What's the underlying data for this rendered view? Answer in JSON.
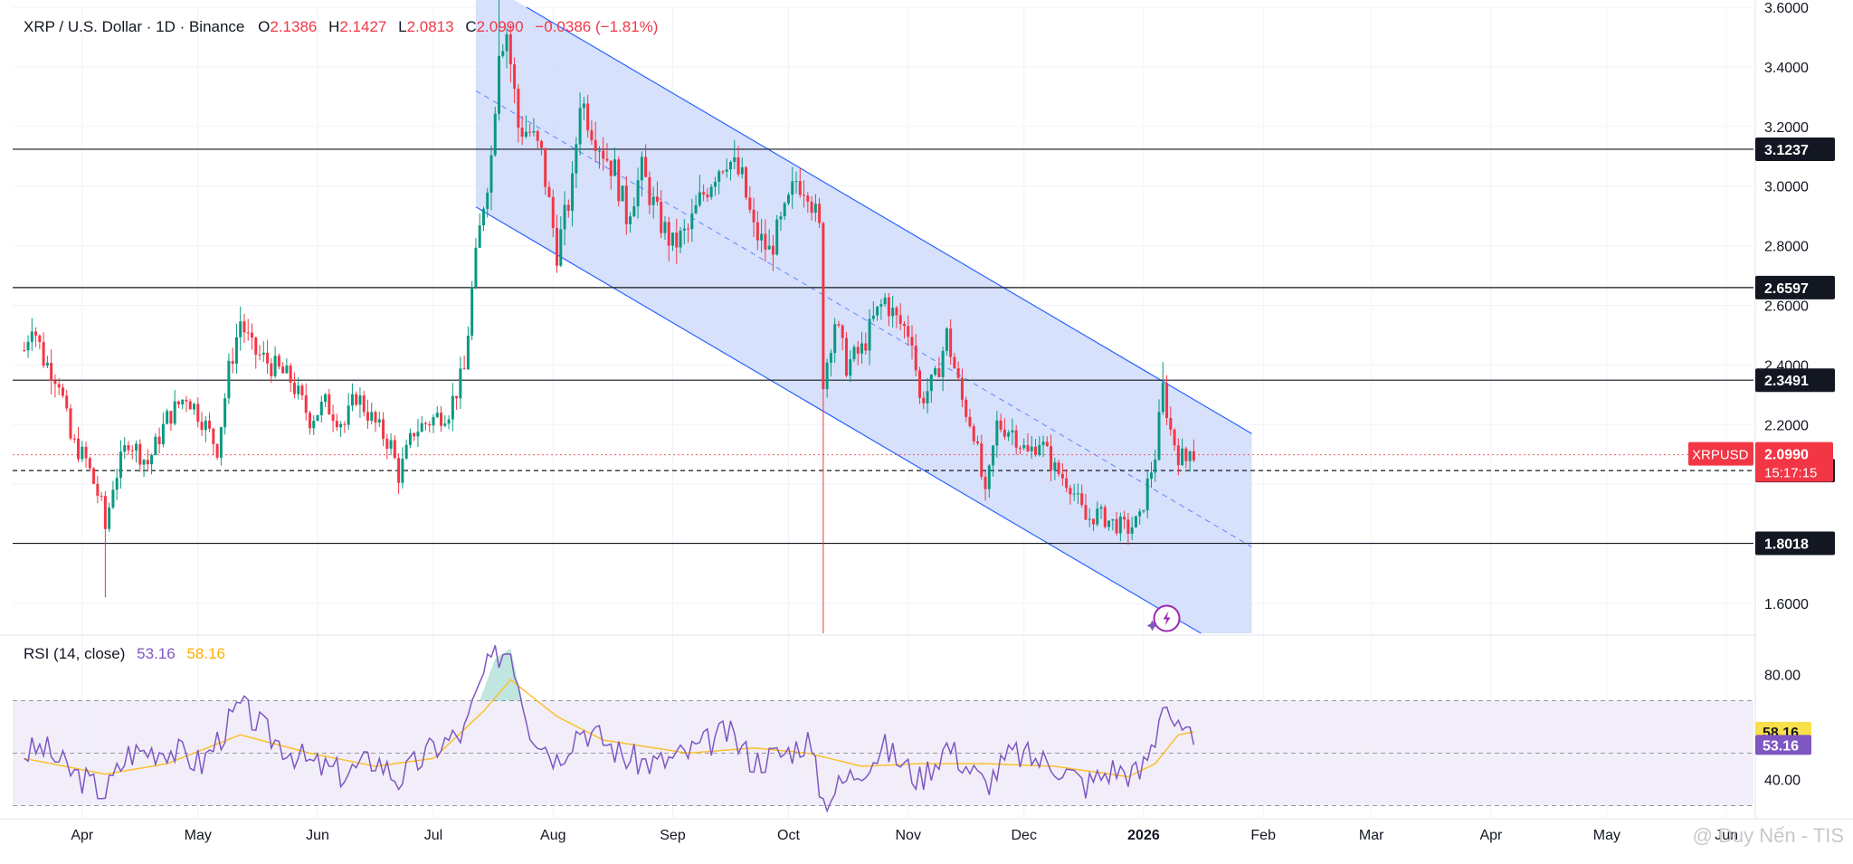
{
  "symbol_line": {
    "title": "XRP / U.S. Dollar · 1D · Binance",
    "o_label": "O",
    "o": "2.1386",
    "h_label": "H",
    "h": "2.1427",
    "l_label": "L",
    "l": "2.0813",
    "c_label": "C",
    "c": "2.0990",
    "change": "−0.0386 (−1.81%)"
  },
  "rsi_legend": {
    "title": "RSI (14, close)",
    "rsi": "53.16",
    "ma": "58.16"
  },
  "watermark": "@ Duy Nến - TIS",
  "colors": {
    "up": "#089981",
    "down": "#f23645",
    "channel_fill": "#d0dcfc",
    "channel_line": "#2962ff",
    "rsi": "#7e57c2",
    "rsi_ma": "#fbc02d",
    "rsi_band": "#ede7f6",
    "level": "#131722",
    "price_tag": "#f23645"
  },
  "chart_data": [
    {
      "type": "candlestick",
      "title": "XRP / U.S. Dollar · 1D · Binance",
      "ylim": [
        1.5,
        3.6
      ],
      "y_ticks": [
        1.6,
        1.8,
        2.0,
        2.2,
        2.4,
        2.6,
        2.8,
        3.0,
        3.2,
        3.4,
        3.6
      ],
      "y_tick_labels": [
        "1.6000",
        "2.2000",
        "2.4000",
        "2.6000",
        "2.8000",
        "3.0000",
        "3.2000",
        "3.4000",
        "3.6000"
      ],
      "y_tick_values": [
        1.6,
        2.2,
        2.4,
        2.6,
        2.8,
        3.0,
        3.2,
        3.4,
        3.6
      ],
      "x_labels": [
        "Apr",
        "May",
        "Jun",
        "Jul",
        "Aug",
        "Sep",
        "Oct",
        "Nov",
        "Dec",
        "2026",
        "Feb",
        "Mar",
        "Apr",
        "May",
        "Jun"
      ],
      "x_label_dates": [
        "2025-04-01",
        "2025-05-01",
        "2025-06-01",
        "2025-07-01",
        "2025-08-01",
        "2025-09-01",
        "2025-10-01",
        "2025-11-01",
        "2025-12-01",
        "2026-01-01",
        "2026-02-01",
        "2026-03-01",
        "2026-04-01",
        "2026-05-01",
        "2026-06-01"
      ],
      "first_date": "2025-03-17",
      "last_date": "2026-01-14",
      "close_path": [
        [
          "2025-03-17",
          2.45
        ],
        [
          "2025-03-19",
          2.55
        ],
        [
          "2025-03-22",
          2.42
        ],
        [
          "2025-03-26",
          2.35
        ],
        [
          "2025-03-29",
          2.15
        ],
        [
          "2025-04-02",
          2.08
        ],
        [
          "2025-04-06",
          1.93
        ],
        [
          "2025-04-07",
          1.85
        ],
        [
          "2025-04-09",
          2.0
        ],
        [
          "2025-04-13",
          2.15
        ],
        [
          "2025-04-18",
          2.07
        ],
        [
          "2025-04-23",
          2.22
        ],
        [
          "2025-04-28",
          2.3
        ],
        [
          "2025-05-02",
          2.22
        ],
        [
          "2025-05-06",
          2.12
        ],
        [
          "2025-05-09",
          2.38
        ],
        [
          "2025-05-12",
          2.55
        ],
        [
          "2025-05-15",
          2.45
        ],
        [
          "2025-05-20",
          2.4
        ],
        [
          "2025-05-25",
          2.35
        ],
        [
          "2025-05-30",
          2.22
        ],
        [
          "2025-06-03",
          2.27
        ],
        [
          "2025-06-08",
          2.2
        ],
        [
          "2025-06-11",
          2.3
        ],
        [
          "2025-06-16",
          2.2
        ],
        [
          "2025-06-20",
          2.13
        ],
        [
          "2025-06-22",
          2.03
        ],
        [
          "2025-06-26",
          2.18
        ],
        [
          "2025-07-01",
          2.22
        ],
        [
          "2025-07-05",
          2.25
        ],
        [
          "2025-07-09",
          2.38
        ],
        [
          "2025-07-11",
          2.65
        ],
        [
          "2025-07-14",
          2.95
        ],
        [
          "2025-07-16",
          3.1
        ],
        [
          "2025-07-18",
          3.48
        ],
        [
          "2025-07-20",
          3.52
        ],
        [
          "2025-07-23",
          3.2
        ],
        [
          "2025-07-26",
          3.18
        ],
        [
          "2025-07-29",
          3.1
        ],
        [
          "2025-08-02",
          2.78
        ],
        [
          "2025-08-06",
          3.0
        ],
        [
          "2025-08-08",
          3.3
        ],
        [
          "2025-08-11",
          3.2
        ],
        [
          "2025-08-14",
          3.12
        ],
        [
          "2025-08-17",
          3.05
        ],
        [
          "2025-08-20",
          2.9
        ],
        [
          "2025-08-24",
          3.05
        ],
        [
          "2025-08-28",
          2.9
        ],
        [
          "2025-09-01",
          2.8
        ],
        [
          "2025-09-05",
          2.85
        ],
        [
          "2025-09-08",
          2.95
        ],
        [
          "2025-09-12",
          3.05
        ],
        [
          "2025-09-15",
          3.1
        ],
        [
          "2025-09-19",
          3.02
        ],
        [
          "2025-09-22",
          2.85
        ],
        [
          "2025-09-26",
          2.78
        ],
        [
          "2025-09-30",
          2.9
        ],
        [
          "2025-10-03",
          3.02
        ],
        [
          "2025-10-06",
          3.0
        ],
        [
          "2025-10-09",
          2.85
        ],
        [
          "2025-10-10",
          2.35
        ],
        [
          "2025-10-13",
          2.55
        ],
        [
          "2025-10-16",
          2.4
        ],
        [
          "2025-10-20",
          2.45
        ],
        [
          "2025-10-23",
          2.55
        ],
        [
          "2025-10-26",
          2.62
        ],
        [
          "2025-10-29",
          2.55
        ],
        [
          "2025-11-02",
          2.5
        ],
        [
          "2025-11-04",
          2.28
        ],
        [
          "2025-11-08",
          2.35
        ],
        [
          "2025-11-11",
          2.5
        ],
        [
          "2025-11-15",
          2.28
        ],
        [
          "2025-11-18",
          2.18
        ],
        [
          "2025-11-21",
          1.95
        ],
        [
          "2025-11-24",
          2.2
        ],
        [
          "2025-11-28",
          2.18
        ],
        [
          "2025-12-02",
          2.1
        ],
        [
          "2025-12-05",
          2.15
        ],
        [
          "2025-12-09",
          2.05
        ],
        [
          "2025-12-13",
          2.0
        ],
        [
          "2025-12-17",
          1.88
        ],
        [
          "2025-12-20",
          1.9
        ],
        [
          "2025-12-24",
          1.87
        ],
        [
          "2025-12-28",
          1.85
        ],
        [
          "2025-12-31",
          1.88
        ],
        [
          "2026-01-02",
          2.0
        ],
        [
          "2026-01-04",
          2.1
        ],
        [
          "2026-01-06",
          2.32
        ],
        [
          "2026-01-08",
          2.18
        ],
        [
          "2026-01-10",
          2.1
        ],
        [
          "2026-01-12",
          2.08
        ],
        [
          "2026-01-13",
          2.14
        ],
        [
          "2026-01-14",
          2.099
        ]
      ],
      "series": [
        {
          "name": "XRPUSD",
          "last": 2.099
        }
      ],
      "levels": [
        3.1237,
        2.6597,
        2.3491,
        1.8018
      ],
      "dashed_level": 2.0459,
      "channel": {
        "upper": [
          [
            "2025-07-12",
            3.7
          ],
          [
            "2026-01-29",
            2.17
          ]
        ],
        "middle": [
          [
            "2025-07-12",
            3.32
          ],
          [
            "2026-01-29",
            1.79
          ]
        ],
        "lower": [
          [
            "2025-07-12",
            2.93
          ],
          [
            "2026-01-29",
            1.4
          ]
        ]
      },
      "price_tags": [
        {
          "value": 3.1237,
          "label": "3.1237",
          "style": "level"
        },
        {
          "value": 2.6597,
          "label": "2.6597",
          "style": "level"
        },
        {
          "value": 2.3491,
          "label": "2.3491",
          "style": "level"
        },
        {
          "value": 2.0459,
          "label": "2.0459",
          "style": "level"
        },
        {
          "value": 1.8018,
          "label": "1.8018",
          "style": "level"
        }
      ],
      "last_price_tag": {
        "symbol": "XRPUSD",
        "value": 2.099,
        "label": "2.0990",
        "countdown": "15:17:15"
      }
    },
    {
      "type": "line",
      "title": "RSI (14, close)",
      "ylim": [
        25,
        95
      ],
      "y_tick_labels": [
        "80.00",
        "40.00"
      ],
      "y_tick_values": [
        80,
        40
      ],
      "bands": [
        70,
        50,
        30
      ],
      "series": [
        {
          "name": "RSI",
          "last": 53.16,
          "points": [
            [
              "2025-03-17",
              50
            ],
            [
              "2025-03-22",
              52
            ],
            [
              "2025-03-29",
              43
            ],
            [
              "2025-04-07",
              35
            ],
            [
              "2025-04-13",
              50
            ],
            [
              "2025-04-23",
              52
            ],
            [
              "2025-05-02",
              46
            ],
            [
              "2025-05-12",
              68
            ],
            [
              "2025-05-20",
              56
            ],
            [
              "2025-05-30",
              46
            ],
            [
              "2025-06-08",
              42
            ],
            [
              "2025-06-16",
              48
            ],
            [
              "2025-06-22",
              40
            ],
            [
              "2025-07-01",
              52
            ],
            [
              "2025-07-09",
              58
            ],
            [
              "2025-07-14",
              80
            ],
            [
              "2025-07-18",
              88
            ],
            [
              "2025-07-21",
              90
            ],
            [
              "2025-07-26",
              60
            ],
            [
              "2025-08-02",
              48
            ],
            [
              "2025-08-08",
              60
            ],
            [
              "2025-08-14",
              55
            ],
            [
              "2025-08-20",
              48
            ],
            [
              "2025-08-28",
              46
            ],
            [
              "2025-09-05",
              50
            ],
            [
              "2025-09-15",
              58
            ],
            [
              "2025-09-22",
              47
            ],
            [
              "2025-09-30",
              50
            ],
            [
              "2025-10-06",
              55
            ],
            [
              "2025-10-10",
              32
            ],
            [
              "2025-10-16",
              40
            ],
            [
              "2025-10-26",
              52
            ],
            [
              "2025-11-04",
              40
            ],
            [
              "2025-11-11",
              53
            ],
            [
              "2025-11-21",
              38
            ],
            [
              "2025-11-28",
              50
            ],
            [
              "2025-12-09",
              46
            ],
            [
              "2025-12-17",
              38
            ],
            [
              "2025-12-24",
              44
            ],
            [
              "2025-12-31",
              42
            ],
            [
              "2026-01-04",
              56
            ],
            [
              "2026-01-06",
              72
            ],
            [
              "2026-01-10",
              58
            ],
            [
              "2026-01-14",
              53.16
            ]
          ]
        },
        {
          "name": "RSI-based MA",
          "last": 58.16,
          "points": [
            [
              "2025-03-17",
              48
            ],
            [
              "2025-04-07",
              42
            ],
            [
              "2025-04-23",
              46
            ],
            [
              "2025-05-12",
              57
            ],
            [
              "2025-05-30",
              50
            ],
            [
              "2025-06-16",
              45
            ],
            [
              "2025-07-01",
              48
            ],
            [
              "2025-07-14",
              66
            ],
            [
              "2025-07-21",
              78
            ],
            [
              "2025-08-02",
              64
            ],
            [
              "2025-08-14",
              55
            ],
            [
              "2025-09-05",
              50
            ],
            [
              "2025-09-22",
              52
            ],
            [
              "2025-10-06",
              50
            ],
            [
              "2025-10-20",
              45
            ],
            [
              "2025-11-04",
              46
            ],
            [
              "2025-11-21",
              46
            ],
            [
              "2025-12-09",
              45
            ],
            [
              "2025-12-28",
              41
            ],
            [
              "2026-01-04",
              46
            ],
            [
              "2026-01-10",
              57
            ],
            [
              "2026-01-14",
              58.16
            ]
          ]
        }
      ],
      "price_tags": [
        {
          "value": 58.16,
          "label": "58.16",
          "style": "ma"
        },
        {
          "value": 53.16,
          "label": "53.16",
          "style": "rsi"
        }
      ]
    }
  ]
}
